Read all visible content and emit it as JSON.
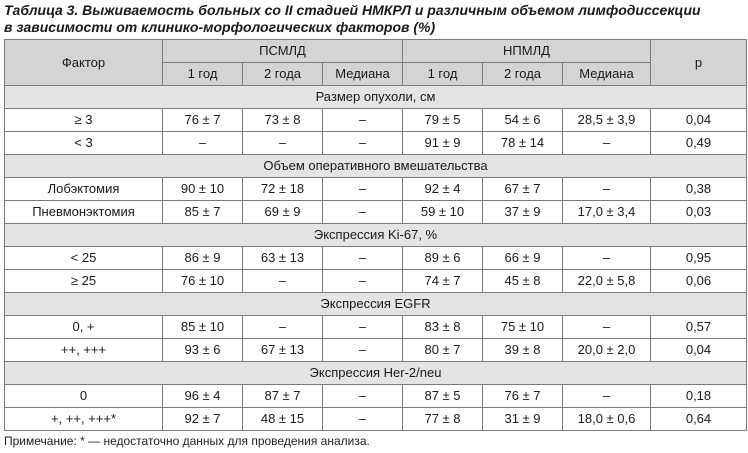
{
  "caption": {
    "line1": "Таблица 3. Выживаемость больных со II стадией НМКРЛ и различным объемом лимфодиссекции",
    "line2": "в зависимости от клинико-морфологических факторов (%)"
  },
  "header": {
    "factor": "Фактор",
    "group1": "ПСМЛД",
    "group2": "НПМЛД",
    "p": "p",
    "sub": [
      "1 год",
      "2 года",
      "Медиана",
      "1 год",
      "2 года",
      "Медиана"
    ]
  },
  "sections": [
    {
      "title": "Размер опухоли, см",
      "rows": [
        {
          "factor": "≥ 3",
          "c": [
            "76 ± 7",
            "73 ± 8",
            "–",
            "79 ± 5",
            "54 ± 6",
            "28,5 ± 3,9"
          ],
          "p": "0,04"
        },
        {
          "factor": "< 3",
          "c": [
            "–",
            "–",
            "–",
            "91 ± 9",
            "78 ± 14",
            "–"
          ],
          "p": "0,49"
        }
      ]
    },
    {
      "title": "Объем оперативного вмешательства",
      "rows": [
        {
          "factor": "Лобэктомия",
          "c": [
            "90 ± 10",
            "72 ± 18",
            "–",
            "92 ± 4",
            "67 ± 7",
            "–"
          ],
          "p": "0,38"
        },
        {
          "factor": "Пневмонэктомия",
          "c": [
            "85 ± 7",
            "69 ± 9",
            "–",
            "59 ± 10",
            "37 ± 9",
            "17,0 ± 3,4"
          ],
          "p": "0,03"
        }
      ]
    },
    {
      "title": "Экспрессия Ki-67, %",
      "rows": [
        {
          "factor": "< 25",
          "c": [
            "86 ± 9",
            "63 ± 13",
            "–",
            "89 ± 6",
            "66 ± 9",
            "–"
          ],
          "p": "0,95"
        },
        {
          "factor": "≥ 25",
          "c": [
            "76 ± 10",
            "–",
            "–",
            "74 ± 7",
            "45 ± 8",
            "22,0 ± 5,8"
          ],
          "p": "0,06"
        }
      ]
    },
    {
      "title": "Экспрессия EGFR",
      "rows": [
        {
          "factor": "0, +",
          "c": [
            "85 ± 10",
            "–",
            "–",
            "83 ± 8",
            "75 ± 10",
            "–"
          ],
          "p": "0,57"
        },
        {
          "factor": "++, +++",
          "c": [
            "93 ± 6",
            "67 ± 13",
            "–",
            "80 ± 7",
            "39 ± 8",
            "20,0 ± 2,0"
          ],
          "p": "0,04"
        }
      ]
    },
    {
      "title": "Экспрессия Her-2/neu",
      "rows": [
        {
          "factor": "0",
          "c": [
            "96 ± 4",
            "87 ± 7",
            "–",
            "87 ± 5",
            "76 ± 7",
            "–"
          ],
          "p": "0,18"
        },
        {
          "factor": "+, ++, +++*",
          "c": [
            "92 ± 7",
            "48 ± 15",
            "–",
            "77 ± 8",
            "31 ± 9",
            "18,0 ± 0,6"
          ],
          "p": "0,64"
        }
      ]
    }
  ],
  "note": "Примечание: * — недостаточно данных для проведения анализа."
}
